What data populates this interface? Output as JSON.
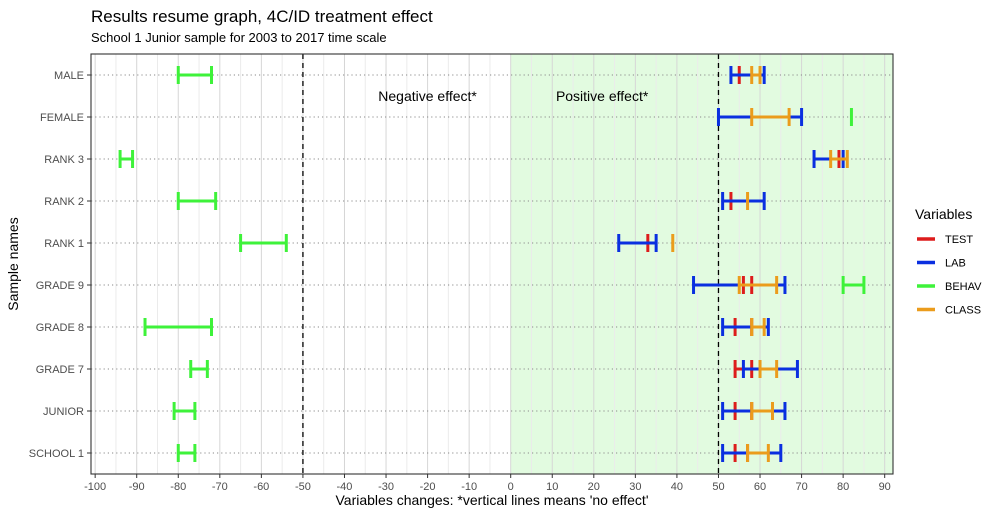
{
  "chart_data": {
    "type": "errorbar",
    "title": "Results resume graph, 4C/ID treatment effect",
    "subtitle": "School 1 Junior sample for 2003 to 2017 time scale",
    "xlabel": "Variables changes: *vertical lines means 'no effect'",
    "ylabel": "Sample names",
    "xlim": [
      -101,
      92
    ],
    "x_ticks": [
      -100,
      -90,
      -80,
      -70,
      -60,
      -50,
      -40,
      -30,
      -20,
      -10,
      0,
      10,
      20,
      30,
      40,
      50,
      60,
      70,
      80,
      90
    ],
    "x_tick_labels": [
      "-100",
      "-90",
      "-80",
      "-70",
      "-60",
      "-50",
      "-40",
      "-30",
      "-20",
      "-10",
      "0",
      "10",
      "20",
      "30",
      "40",
      "50",
      "60",
      "70",
      "80",
      "90"
    ],
    "categories": [
      "MALE",
      "FEMALE",
      "RANK 3",
      "RANK 2",
      "RANK 1",
      "GRADE 9",
      "GRADE 8",
      "GRADE 7",
      "JUNIOR",
      "SCHOOL 1"
    ],
    "reference_lines": [
      -50,
      50
    ],
    "positive_region": [
      0,
      92
    ],
    "annotations": [
      "Negative effect*",
      "Positive effect*"
    ],
    "annotation_x": [
      -20,
      22
    ],
    "legend": {
      "title": "Variables",
      "position": "right",
      "entries": [
        "TEST",
        "LAB",
        "BEHAV",
        "CLASS"
      ]
    },
    "colors": {
      "TEST": "#dd1c1c",
      "LAB": "#0a2fe0",
      "BEHAV": "#3ef23a",
      "CLASS": "#eb9c1c",
      "region": "#e2fbe0"
    },
    "series": [
      {
        "name": "TEST",
        "ranges": [
          [
            55,
            55
          ],
          null,
          [
            79,
            79
          ],
          [
            53,
            53
          ],
          [
            33,
            33
          ],
          [
            56,
            58
          ],
          [
            54,
            58
          ],
          [
            54,
            58
          ],
          [
            54,
            58
          ],
          [
            54,
            57
          ]
        ]
      },
      {
        "name": "LAB",
        "ranges": [
          [
            53,
            61
          ],
          [
            50,
            70
          ],
          [
            73,
            80
          ],
          [
            51,
            61
          ],
          [
            26,
            35
          ],
          [
            44,
            66
          ],
          [
            51,
            62
          ],
          [
            56,
            69
          ],
          [
            51,
            66
          ],
          [
            51,
            65
          ]
        ]
      },
      {
        "name": "BEHAV",
        "ranges": [
          [
            -80,
            -72
          ],
          [
            82,
            82
          ],
          [
            -94,
            -91
          ],
          [
            -80,
            -71
          ],
          [
            -65,
            -54
          ],
          [
            80,
            85
          ],
          [
            -88,
            -72
          ],
          [
            -77,
            -73
          ],
          [
            -81,
            -76
          ],
          [
            -80,
            -76
          ]
        ]
      },
      {
        "name": "CLASS",
        "ranges": [
          [
            58,
            60
          ],
          [
            58,
            67
          ],
          [
            77,
            81
          ],
          [
            57,
            57
          ],
          [
            39,
            39
          ],
          [
            55,
            64
          ],
          [
            58,
            61
          ],
          [
            60,
            64
          ],
          [
            58,
            63
          ],
          [
            57,
            62
          ]
        ]
      }
    ]
  }
}
